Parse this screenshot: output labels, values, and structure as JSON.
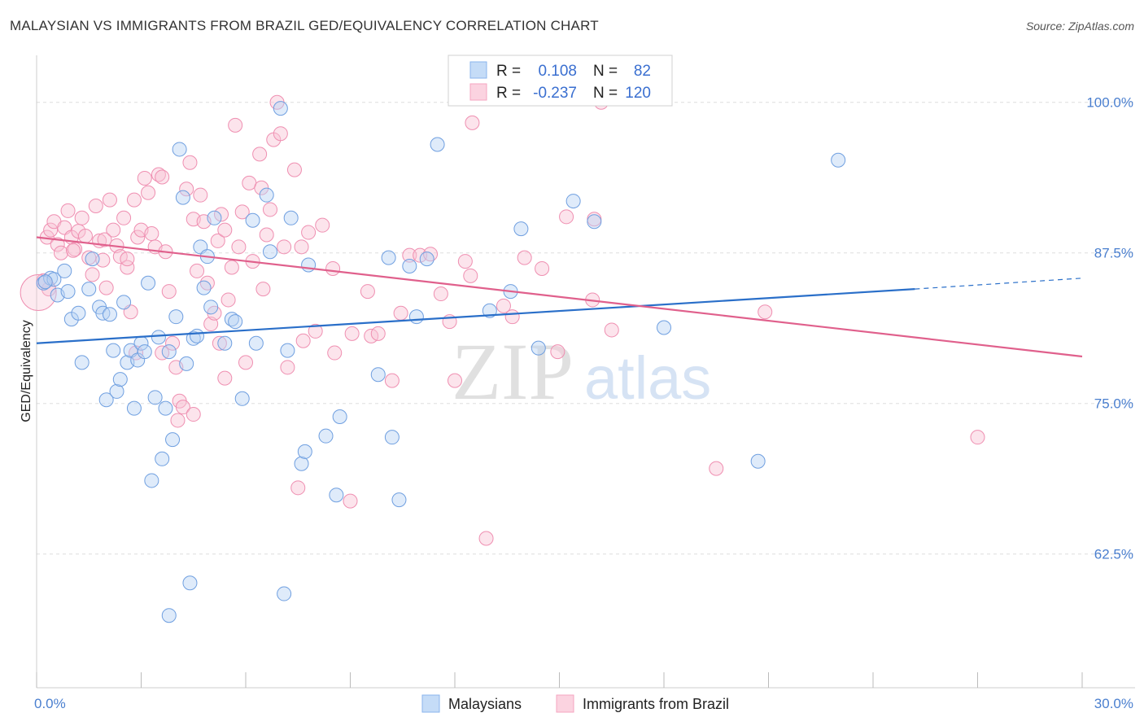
{
  "title": "MALAYSIAN VS IMMIGRANTS FROM BRAZIL GED/EQUIVALENCY CORRELATION CHART",
  "source": "Source: ZipAtlas.com",
  "watermark": {
    "zip": "ZIP",
    "atlas": "atlas"
  },
  "legend": {
    "rows": [
      {
        "r_label": "R =",
        "r_value": "0.108",
        "n_label": "N =",
        "n_value": "82",
        "color": "#8ab4ec"
      },
      {
        "r_label": "R =",
        "r_value": "-0.237",
        "n_label": "N =",
        "n_value": "120",
        "color": "#f4a6c0"
      }
    ]
  },
  "bottom_legend": [
    "Malaysians",
    "Immigrants from Brazil"
  ],
  "chart_data": {
    "type": "scatter",
    "title": "MALAYSIAN VS IMMIGRANTS FROM BRAZIL GED/EQUIVALENCY CORRELATION CHART",
    "xlabel": "",
    "ylabel": "GED/Equivalency",
    "xlim": [
      0,
      30
    ],
    "ylim": [
      51.4,
      103.9
    ],
    "x_tick_labels": [
      "0.0%",
      "30.0%"
    ],
    "y_tick_labels": [
      "100.0%",
      "87.5%",
      "75.0%",
      "62.5%"
    ],
    "y_tick_values": [
      100,
      87.5,
      75,
      62.5
    ],
    "grid": "horizontal dashed",
    "legend_position": "top-center",
    "series": [
      {
        "name": "Malaysians",
        "color": "#8ab4ec",
        "line_color": "#2a6fc9",
        "trend": {
          "x0": 0,
          "y0": 80.0,
          "x1": 25.2,
          "y1": 84.5,
          "x_dash_end": 30,
          "y_dash_end": 85.4
        },
        "points": [
          [
            0.2,
            85.0
          ],
          [
            0.4,
            85.4
          ],
          [
            0.5,
            85.3
          ],
          [
            0.6,
            84.0
          ],
          [
            0.8,
            86.0
          ],
          [
            0.9,
            84.3
          ],
          [
            1.0,
            82.0
          ],
          [
            1.2,
            82.5
          ],
          [
            1.3,
            78.4
          ],
          [
            1.5,
            84.5
          ],
          [
            1.6,
            87.0
          ],
          [
            1.8,
            83.0
          ],
          [
            1.9,
            82.5
          ],
          [
            2.0,
            75.3
          ],
          [
            2.1,
            82.4
          ],
          [
            2.2,
            79.4
          ],
          [
            2.3,
            76.0
          ],
          [
            2.4,
            77.0
          ],
          [
            2.5,
            83.4
          ],
          [
            2.6,
            78.4
          ],
          [
            2.7,
            79.4
          ],
          [
            2.8,
            74.6
          ],
          [
            2.9,
            78.6
          ],
          [
            3.0,
            80.0
          ],
          [
            3.1,
            79.3
          ],
          [
            3.2,
            85.0
          ],
          [
            3.3,
            68.6
          ],
          [
            3.4,
            75.5
          ],
          [
            3.5,
            80.5
          ],
          [
            3.6,
            70.4
          ],
          [
            3.7,
            74.6
          ],
          [
            3.8,
            79.3
          ],
          [
            3.9,
            72.0
          ],
          [
            4.0,
            82.2
          ],
          [
            4.1,
            96.1
          ],
          [
            4.2,
            92.1
          ],
          [
            4.3,
            78.3
          ],
          [
            4.4,
            60.1
          ],
          [
            4.5,
            80.4
          ],
          [
            4.6,
            80.6
          ],
          [
            4.7,
            88.0
          ],
          [
            4.8,
            84.6
          ],
          [
            4.9,
            87.2
          ],
          [
            5.0,
            83.0
          ],
          [
            5.1,
            90.4
          ],
          [
            5.4,
            80.0
          ],
          [
            5.6,
            82.0
          ],
          [
            5.7,
            81.8
          ],
          [
            5.9,
            75.4
          ],
          [
            6.2,
            90.2
          ],
          [
            6.3,
            80.0
          ],
          [
            6.6,
            92.3
          ],
          [
            6.7,
            87.6
          ],
          [
            7.0,
            99.5
          ],
          [
            7.1,
            59.2
          ],
          [
            7.2,
            79.4
          ],
          [
            7.3,
            90.4
          ],
          [
            7.6,
            70.0
          ],
          [
            7.7,
            71.0
          ],
          [
            7.8,
            86.5
          ],
          [
            8.3,
            72.3
          ],
          [
            8.6,
            67.4
          ],
          [
            8.7,
            73.9
          ],
          [
            9.8,
            77.4
          ],
          [
            10.1,
            87.1
          ],
          [
            10.2,
            72.2
          ],
          [
            10.4,
            67.0
          ],
          [
            10.7,
            86.4
          ],
          [
            10.9,
            82.2
          ],
          [
            11.2,
            87.0
          ],
          [
            11.5,
            96.5
          ],
          [
            13.0,
            82.7
          ],
          [
            13.6,
            84.3
          ],
          [
            13.9,
            89.5
          ],
          [
            14.4,
            79.6
          ],
          [
            15.4,
            91.8
          ],
          [
            16.0,
            90.1
          ],
          [
            18.0,
            81.3
          ],
          [
            20.7,
            70.2
          ],
          [
            23.0,
            95.2
          ],
          [
            3.8,
            57.4
          ],
          [
            0.25,
            85.1
          ]
        ]
      },
      {
        "name": "Immigrants from Brazil",
        "color": "#f4a6c0",
        "line_color": "#e0608c",
        "trend": {
          "x0": 0,
          "y0": 88.8,
          "x1": 30,
          "y1": 78.9
        },
        "points": [
          [
            0.2,
            85.2
          ],
          [
            0.3,
            88.8
          ],
          [
            0.4,
            89.4
          ],
          [
            0.5,
            90.1
          ],
          [
            0.6,
            88.2
          ],
          [
            0.7,
            87.5
          ],
          [
            0.8,
            89.6
          ],
          [
            0.9,
            91.0
          ],
          [
            1.0,
            88.8
          ],
          [
            1.1,
            87.8
          ],
          [
            1.2,
            89.3
          ],
          [
            1.3,
            90.4
          ],
          [
            1.4,
            88.9
          ],
          [
            1.5,
            87.1
          ],
          [
            1.6,
            85.7
          ],
          [
            1.7,
            91.4
          ],
          [
            1.8,
            88.5
          ],
          [
            1.9,
            86.9
          ],
          [
            2.0,
            84.6
          ],
          [
            2.1,
            91.9
          ],
          [
            2.2,
            89.4
          ],
          [
            2.3,
            88.1
          ],
          [
            2.4,
            87.2
          ],
          [
            2.5,
            90.4
          ],
          [
            2.6,
            86.3
          ],
          [
            2.7,
            82.6
          ],
          [
            2.8,
            91.9
          ],
          [
            2.9,
            88.8
          ],
          [
            3.0,
            89.4
          ],
          [
            3.1,
            93.7
          ],
          [
            3.2,
            92.5
          ],
          [
            3.3,
            89.1
          ],
          [
            3.4,
            88.0
          ],
          [
            3.5,
            94.0
          ],
          [
            3.6,
            93.8
          ],
          [
            3.7,
            87.6
          ],
          [
            3.8,
            84.3
          ],
          [
            3.9,
            80.0
          ],
          [
            4.0,
            78.0
          ],
          [
            4.1,
            75.2
          ],
          [
            4.2,
            74.7
          ],
          [
            4.3,
            92.8
          ],
          [
            4.4,
            95.0
          ],
          [
            4.5,
            90.3
          ],
          [
            4.6,
            86.0
          ],
          [
            4.7,
            92.3
          ],
          [
            4.8,
            90.1
          ],
          [
            4.9,
            85.0
          ],
          [
            5.0,
            81.6
          ],
          [
            5.1,
            82.5
          ],
          [
            5.2,
            88.5
          ],
          [
            5.3,
            90.7
          ],
          [
            5.4,
            89.4
          ],
          [
            5.5,
            83.6
          ],
          [
            5.6,
            86.3
          ],
          [
            5.7,
            98.1
          ],
          [
            5.8,
            88.0
          ],
          [
            5.9,
            90.9
          ],
          [
            6.0,
            78.4
          ],
          [
            6.1,
            93.3
          ],
          [
            6.2,
            86.8
          ],
          [
            6.4,
            95.7
          ],
          [
            6.5,
            84.5
          ],
          [
            6.6,
            89.0
          ],
          [
            6.7,
            91.1
          ],
          [
            6.8,
            96.9
          ],
          [
            6.9,
            100.0
          ],
          [
            7.0,
            97.4
          ],
          [
            7.1,
            88.0
          ],
          [
            7.2,
            78.0
          ],
          [
            7.4,
            94.4
          ],
          [
            7.6,
            88.0
          ],
          [
            7.8,
            89.2
          ],
          [
            8.0,
            81.0
          ],
          [
            8.2,
            89.8
          ],
          [
            8.5,
            86.2
          ],
          [
            9.0,
            66.9
          ],
          [
            9.5,
            84.3
          ],
          [
            9.6,
            80.6
          ],
          [
            9.8,
            80.8
          ],
          [
            10.2,
            76.9
          ],
          [
            10.7,
            87.3
          ],
          [
            11.0,
            87.3
          ],
          [
            11.3,
            87.4
          ],
          [
            11.6,
            84.1
          ],
          [
            12.0,
            76.9
          ],
          [
            12.3,
            86.8
          ],
          [
            12.9,
            63.8
          ],
          [
            13.4,
            83.1
          ],
          [
            14.0,
            87.1
          ],
          [
            14.5,
            86.2
          ],
          [
            15.2,
            90.5
          ],
          [
            16.0,
            90.3
          ],
          [
            16.5,
            81.1
          ],
          [
            19.5,
            69.6
          ],
          [
            20.9,
            82.6
          ],
          [
            27.0,
            72.2
          ],
          [
            2.6,
            87.0
          ],
          [
            3.6,
            79.2
          ],
          [
            4.5,
            74.1
          ],
          [
            5.4,
            77.1
          ],
          [
            7.5,
            68.0
          ],
          [
            12.5,
            98.3
          ],
          [
            16.2,
            100.0
          ],
          [
            0.35,
            84.5
          ],
          [
            1.05,
            87.7
          ],
          [
            1.95,
            88.6
          ],
          [
            2.85,
            79.2
          ],
          [
            4.05,
            73.6
          ],
          [
            5.25,
            80.0
          ],
          [
            6.45,
            92.9
          ],
          [
            7.65,
            80.2
          ],
          [
            8.55,
            79.2
          ],
          [
            9.05,
            80.8
          ],
          [
            10.45,
            82.5
          ],
          [
            11.85,
            81.8
          ],
          [
            12.45,
            85.6
          ],
          [
            13.65,
            82.2
          ],
          [
            14.95,
            79.3
          ],
          [
            15.95,
            83.6
          ]
        ]
      }
    ]
  }
}
